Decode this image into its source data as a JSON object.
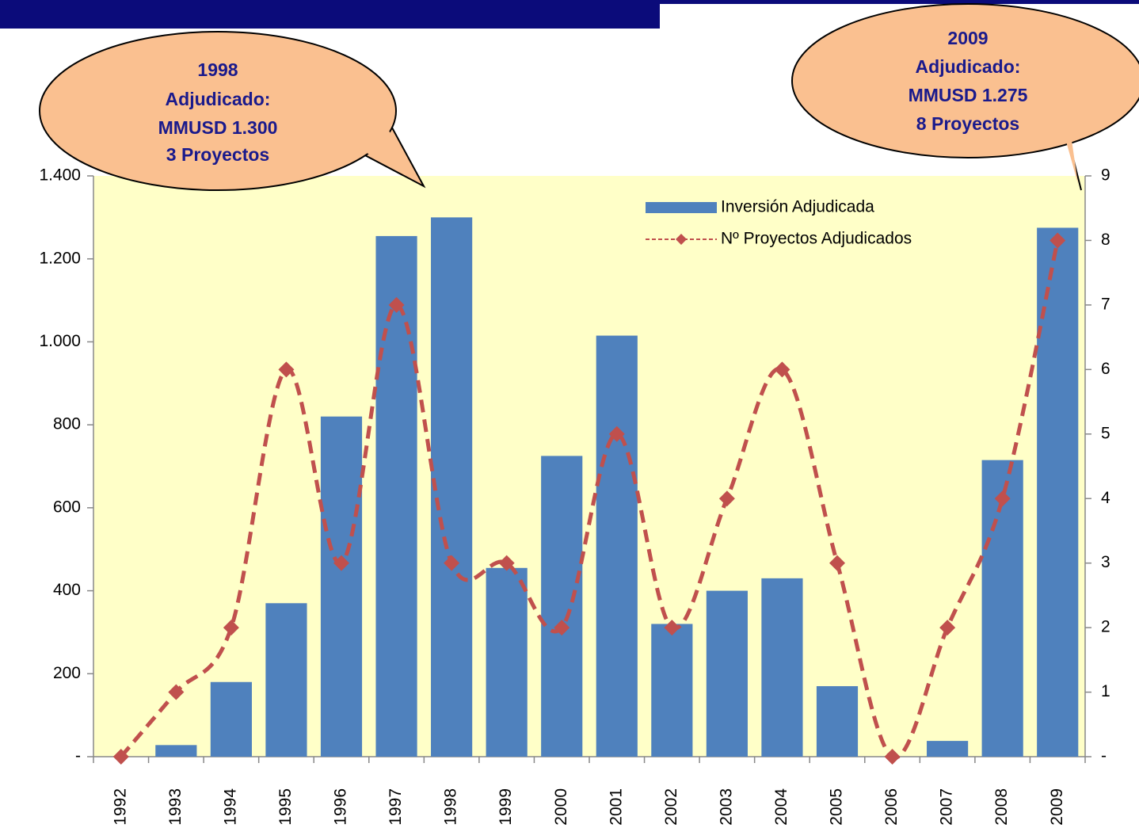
{
  "chart_data": {
    "type": "bar",
    "categories": [
      "1992",
      "1993",
      "1994",
      "1995",
      "1996",
      "1997",
      "1998",
      "1999",
      "2000",
      "2001",
      "2002",
      "2003",
      "2004",
      "2005",
      "2006",
      "2007",
      "2008",
      "2009"
    ],
    "series": [
      {
        "name": "Inversión Adjudicada",
        "type": "bar",
        "color": "#4f81bd",
        "values": [
          0,
          28,
          180,
          370,
          820,
          1255,
          1300,
          455,
          725,
          1015,
          320,
          400,
          430,
          170,
          0,
          38,
          715,
          1275
        ]
      },
      {
        "name": "Nº Proyectos Adjudicados",
        "type": "line",
        "axis": "y2",
        "color": "#c0504d",
        "values": [
          0,
          1,
          2,
          6,
          3,
          7,
          3,
          3,
          2,
          5,
          2,
          4,
          6,
          3,
          0,
          2,
          4,
          8
        ]
      }
    ],
    "ylim": [
      0,
      1400
    ],
    "yticks": [
      {
        "value": 0,
        "label": "-"
      },
      200,
      400,
      600,
      800,
      {
        "value": 1000,
        "label": "1.000"
      },
      {
        "value": 1200,
        "label": "1.200"
      },
      {
        "value": 1400,
        "label": "1.400"
      }
    ],
    "y2lim": [
      0,
      9
    ],
    "y2ticks": [
      {
        "value": 0,
        "label": "-"
      },
      1,
      2,
      3,
      4,
      5,
      6,
      7,
      8,
      9
    ],
    "annotations": [
      [
        "1998",
        "Adjudicado:",
        "MMUSD 1.300",
        "3 Proyectos"
      ],
      [
        "2009",
        "Adjudicado:",
        "MMUSD 1.275",
        "8 Proyectos"
      ]
    ]
  }
}
